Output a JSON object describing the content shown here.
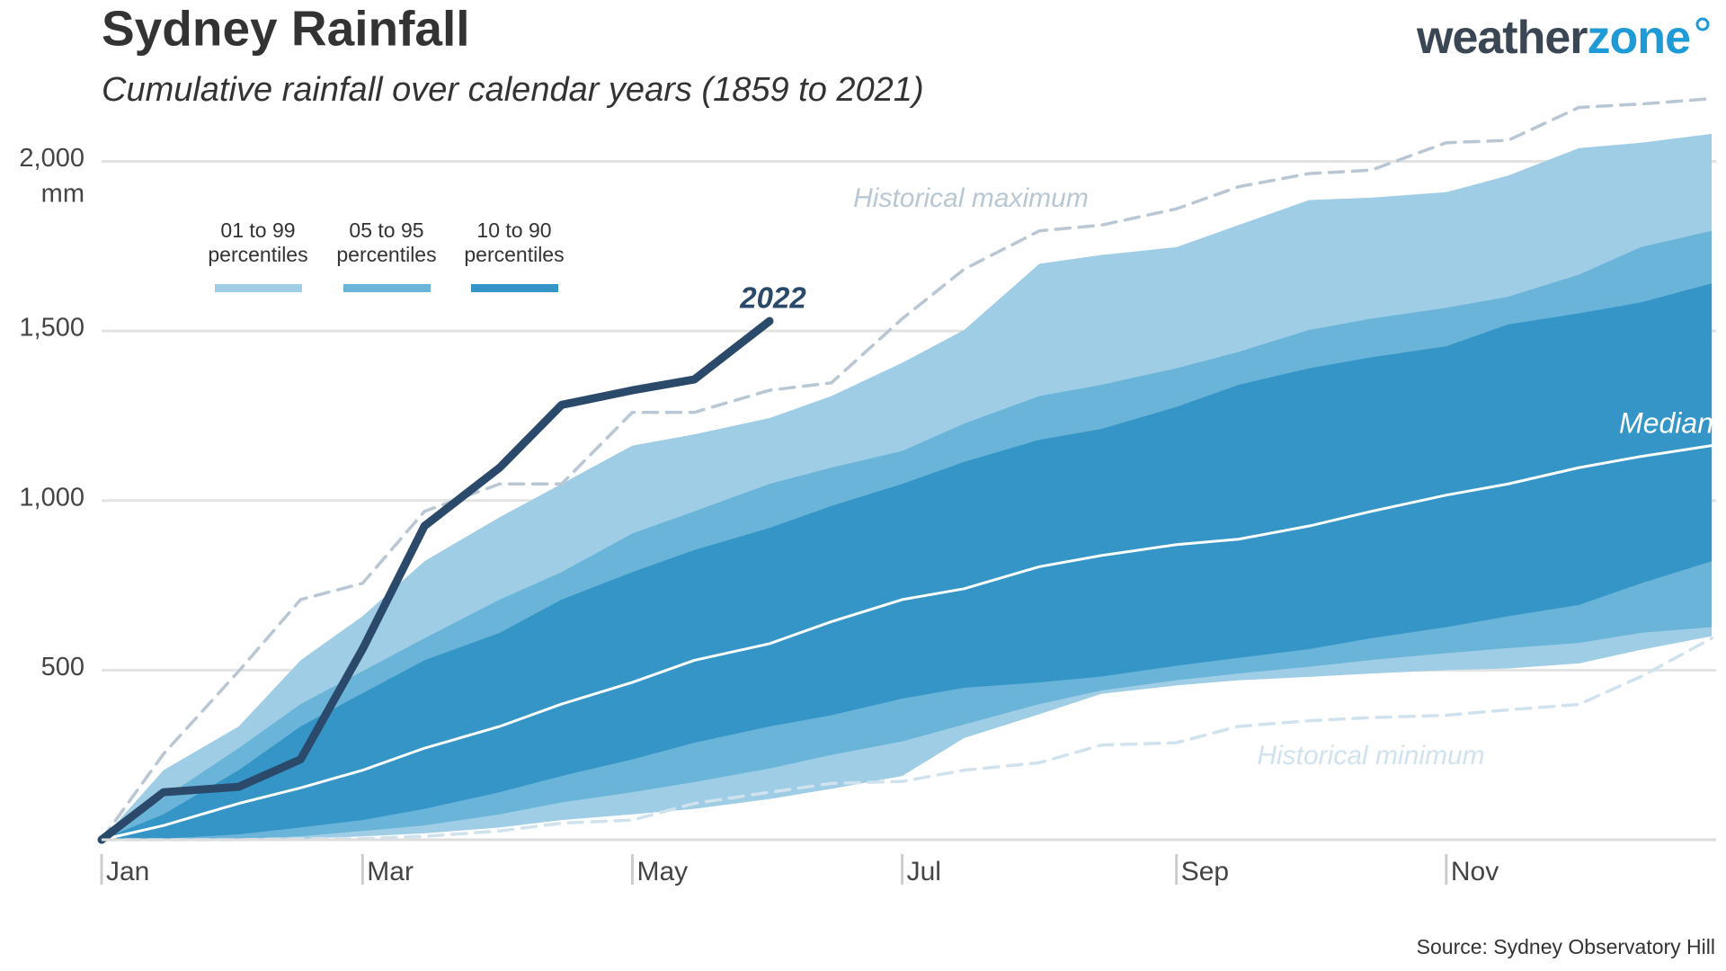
{
  "brand": {
    "dark": "weather",
    "accent": "zone"
  },
  "chart_data": {
    "type": "band",
    "title": "Sydney Rainfall",
    "subtitle": "Cumulative rainfall over calendar years (1859 to 2021)",
    "source": "Source: Sydney Observatory Hill",
    "y_unit": "mm",
    "x": [
      1,
      15,
      32,
      46,
      60,
      74,
      91,
      105,
      121,
      135,
      152,
      166,
      182,
      196,
      213,
      227,
      244,
      258,
      274,
      288,
      305,
      319,
      335,
      349,
      365
    ],
    "xlim": [
      1,
      366
    ],
    "xticks": [
      {
        "value": 1,
        "label": "Jan"
      },
      {
        "value": 60,
        "label": "Mar"
      },
      {
        "value": 121,
        "label": "May"
      },
      {
        "value": 182,
        "label": "Jul"
      },
      {
        "value": 244,
        "label": "Sep"
      },
      {
        "value": 305,
        "label": "Nov"
      }
    ],
    "ylim": [
      0,
      2200
    ],
    "yticks": [
      500,
      {
        "value": 1000,
        "label": "1,000"
      },
      {
        "value": 1500,
        "label": "1,500"
      },
      {
        "value": 2000,
        "label": "2,000"
      }
    ],
    "grid": true,
    "bands": [
      {
        "name": "01 to 99 percentiles",
        "color": "#9fcde6",
        "low": [
          0,
          0,
          0,
          3,
          10,
          19,
          36,
          58,
          75,
          91,
          120,
          150,
          188,
          300,
          370,
          430,
          455,
          470,
          480,
          490,
          500,
          505,
          520,
          560,
          600
        ],
        "high": [
          0,
          205,
          334,
          529,
          659,
          821,
          951,
          1049,
          1162,
          1195,
          1243,
          1308,
          1406,
          1503,
          1698,
          1724,
          1747,
          1812,
          1886,
          1893,
          1909,
          1958,
          2039,
          2055,
          2081
        ]
      },
      {
        "name": "05 to 95 percentiles",
        "color": "#6ab4d9",
        "low": [
          0,
          0,
          3,
          10,
          26,
          42,
          75,
          110,
          140,
          170,
          210,
          250,
          290,
          340,
          400,
          440,
          470,
          490,
          510,
          530,
          550,
          565,
          580,
          610,
          627
        ],
        "high": [
          0,
          123,
          270,
          400,
          497,
          594,
          708,
          789,
          903,
          968,
          1049,
          1097,
          1146,
          1227,
          1308,
          1341,
          1390,
          1438,
          1503,
          1536,
          1568,
          1601,
          1666,
          1747,
          1795
        ]
      },
      {
        "name": "10 to 90 percentiles",
        "color": "#3495c6",
        "low": [
          0,
          3,
          16,
          36,
          58,
          91,
          140,
          188,
          237,
          286,
          334,
          367,
          416,
          448,
          464,
          481,
          513,
          536,
          562,
          594,
          627,
          659,
          692,
          756,
          821
        ],
        "high": [
          0,
          75,
          205,
          334,
          432,
          529,
          610,
          708,
          789,
          854,
          919,
          984,
          1049,
          1114,
          1179,
          1211,
          1276,
          1341,
          1390,
          1422,
          1455,
          1519,
          1552,
          1584,
          1640
        ]
      }
    ],
    "series": [
      {
        "name": "Historical maximum",
        "color": "#b8c7d3",
        "dashed": true,
        "values": [
          0,
          253,
          497,
          708,
          756,
          968,
          1049,
          1049,
          1260,
          1260,
          1325,
          1347,
          1536,
          1682,
          1795,
          1812,
          1860,
          1925,
          1964,
          1974,
          2055,
          2062,
          2159,
          2169,
          2185
        ]
      },
      {
        "name": "Historical minimum",
        "color": "#cfe2ee",
        "dashed": true,
        "values": [
          0,
          0,
          0,
          3,
          3,
          10,
          26,
          49,
          58,
          107,
          140,
          166,
          172,
          205,
          227,
          279,
          286,
          334,
          351,
          360,
          367,
          383,
          399,
          481,
          594
        ]
      },
      {
        "name": "Median",
        "color": "#ffffff",
        "dashed": false,
        "values": [
          0,
          42,
          107,
          153,
          205,
          270,
          334,
          400,
          464,
          529,
          578,
          643,
          708,
          740,
          805,
          838,
          870,
          886,
          925,
          968,
          1016,
          1049,
          1097,
          1130,
          1162
        ]
      },
      {
        "name": "2022",
        "color": "#2b4a6b",
        "dashed": false,
        "values": [
          0,
          140,
          156,
          237,
          562,
          925,
          1097,
          1282,
          1325,
          1357,
          1529,
          null,
          null,
          null,
          null,
          null,
          null,
          null,
          null,
          null,
          null,
          null,
          null,
          null,
          null
        ]
      }
    ]
  }
}
